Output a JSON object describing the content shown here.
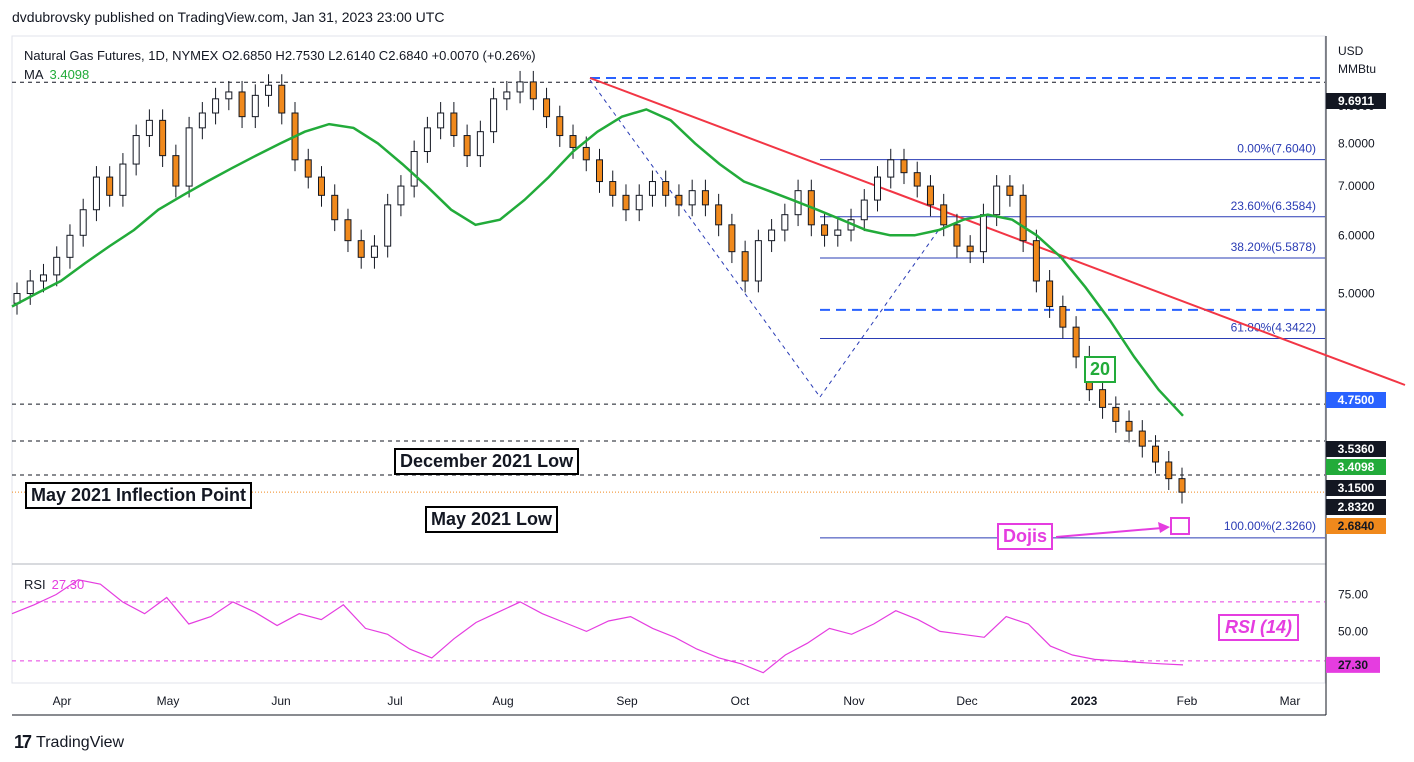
{
  "publisher_line": "dvdubrovsky published on TradingView.com, Jan 31, 2023 23:00 UTC",
  "legend": {
    "symbol_line": "Natural Gas Futures, 1D, NYMEX  O2.6850  H2.7530  L2.6140  C2.6840  +0.0070 (+0.26%)",
    "ma_label": "MA",
    "ma_value": "3.4098"
  },
  "rsi_legend": {
    "label": "RSI",
    "value": "27.30"
  },
  "axis_unit": {
    "line1": "USD",
    "line2": "MMBtu"
  },
  "footer": {
    "logo": "17",
    "brand": "TradingView"
  },
  "annotations": {
    "december_2021_low": "December 2021 Low",
    "may_2021_inflection": "May 2021 Inflection Point",
    "may_2021_low": "May 2021 Low",
    "dojis": "Dojis",
    "ma_period": "20",
    "rsi_note": "RSI (14)"
  },
  "colors": {
    "up": "#ffffff",
    "down": "#f0891c",
    "ma": "#22ab3a",
    "trendline": "#f23645",
    "fib": "#2a3cb5",
    "rsi": "#e53de0",
    "highlight_blue": "#2962ff"
  },
  "chart_data": {
    "type": "candlestick",
    "title": "Natural Gas Futures, 1D, NYMEX",
    "y_scale": "log",
    "ylim": [
      2.15,
      11.2
    ],
    "x_months": [
      "Apr",
      "May",
      "Jun",
      "Jul",
      "Aug",
      "Sep",
      "Oct",
      "Nov",
      "Dec",
      "2023",
      "Feb",
      "Mar"
    ],
    "y_ticks": [
      "9.0000",
      "8.0000",
      "7.0000",
      "6.0000",
      "5.0000"
    ],
    "price_badges": [
      {
        "value": "9.6911",
        "bg": "#131722",
        "fg": "#ffffff"
      },
      {
        "value": "4.7500",
        "bg": "#2962ff",
        "fg": "#ffffff"
      },
      {
        "value": "3.5360",
        "bg": "#131722",
        "fg": "#ffffff"
      },
      {
        "value": "3.4098",
        "bg": "#22ab3a",
        "fg": "#ffffff"
      },
      {
        "value": "3.1500",
        "bg": "#131722",
        "fg": "#ffffff"
      },
      {
        "value": "2.8320",
        "bg": "#131722",
        "fg": "#ffffff"
      },
      {
        "value": "2.6840",
        "bg": "#f0891c",
        "fg": "#131722"
      }
    ],
    "fib_levels": [
      {
        "label": "0.00%(7.6040)",
        "value": 7.604
      },
      {
        "label": "23.60%(6.3584)",
        "value": 6.3584
      },
      {
        "label": "38.20%(5.5878)",
        "value": 5.5878
      },
      {
        "label": "61.80%(4.3422)",
        "value": 4.3422
      },
      {
        "label": "100.00%(2.3260)",
        "value": 2.326
      }
    ],
    "horizontal_levels": [
      9.6911,
      4.75,
      3.536,
      3.15,
      2.832
    ],
    "close_series": [
      5.0,
      5.2,
      5.3,
      5.6,
      6.0,
      6.5,
      7.2,
      6.8,
      7.5,
      8.2,
      8.6,
      7.7,
      7.0,
      8.4,
      8.8,
      9.2,
      9.4,
      8.7,
      9.3,
      9.6,
      8.8,
      7.6,
      7.2,
      6.8,
      6.3,
      5.9,
      5.6,
      5.8,
      6.6,
      7.0,
      7.8,
      8.4,
      8.8,
      8.2,
      7.7,
      8.3,
      9.2,
      9.4,
      9.7,
      9.2,
      8.7,
      8.2,
      7.9,
      7.6,
      7.1,
      6.8,
      6.5,
      6.8,
      7.1,
      6.8,
      6.6,
      6.9,
      6.6,
      6.2,
      5.7,
      5.2,
      5.9,
      6.1,
      6.4,
      6.9,
      6.2,
      6.0,
      6.1,
      6.3,
      6.7,
      7.2,
      7.6,
      7.3,
      7.0,
      6.6,
      6.2,
      5.8,
      5.7,
      6.4,
      7.0,
      6.8,
      5.9,
      5.2,
      4.8,
      4.5,
      4.1,
      3.7,
      3.5,
      3.35,
      3.25,
      3.1,
      2.95,
      2.8,
      2.684
    ],
    "ma_series": [
      4.8,
      5.0,
      5.2,
      5.5,
      5.8,
      6.1,
      6.5,
      6.8,
      7.1,
      7.4,
      7.7,
      8.0,
      8.3,
      8.5,
      8.4,
      8.0,
      7.5,
      7.0,
      6.5,
      6.2,
      6.3,
      6.7,
      7.2,
      7.8,
      8.3,
      8.7,
      8.9,
      8.6,
      8.0,
      7.5,
      7.1,
      6.9,
      6.7,
      6.5,
      6.3,
      6.1,
      6.0,
      6.0,
      6.1,
      6.3,
      6.4,
      6.3,
      6.0,
      5.6,
      5.1,
      4.6,
      4.1,
      3.7,
      3.409
    ],
    "rsi": {
      "ylim": [
        15,
        95
      ],
      "levels": [
        70,
        30
      ],
      "ticks": [
        "75.00",
        "50.00"
      ],
      "value": 27.3,
      "series": [
        62,
        68,
        75,
        85,
        82,
        70,
        62,
        73,
        55,
        60,
        70,
        63,
        54,
        62,
        58,
        68,
        52,
        48,
        38,
        32,
        45,
        56,
        63,
        70,
        62,
        56,
        50,
        57,
        60,
        52,
        46,
        38,
        32,
        28,
        22,
        34,
        42,
        52,
        48,
        55,
        64,
        58,
        50,
        48,
        46,
        60,
        55,
        40,
        34,
        31,
        30,
        29,
        28,
        27.3
      ]
    }
  }
}
